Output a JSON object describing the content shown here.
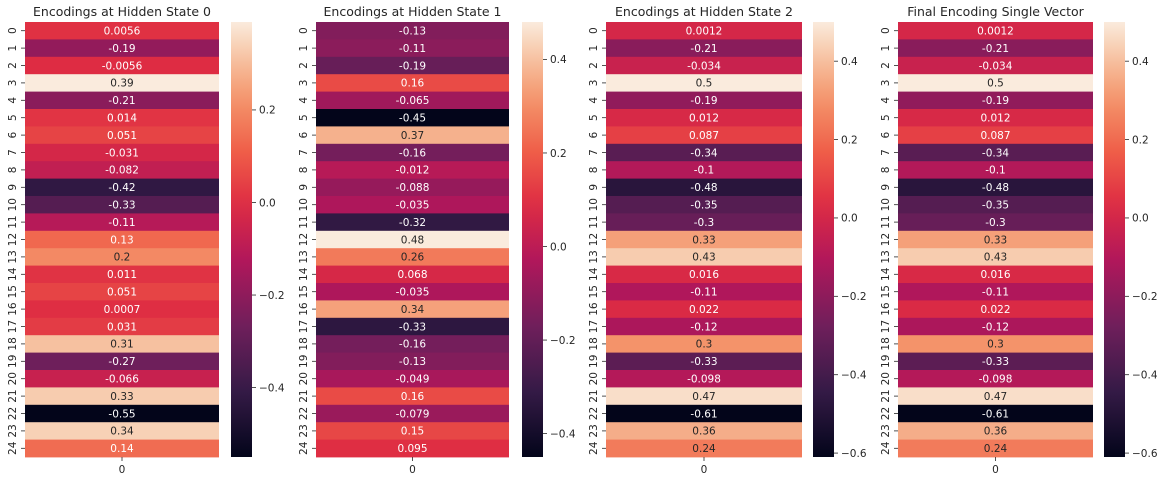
{
  "chart_data": [
    {
      "type": "heatmap",
      "title": "Encodings at Hidden State 0",
      "x_categories": [
        "0"
      ],
      "y_categories": [
        "0",
        "1",
        "2",
        "3",
        "4",
        "5",
        "6",
        "7",
        "8",
        "9",
        "10",
        "11",
        "12",
        "13",
        "14",
        "15",
        "16",
        "17",
        "18",
        "19",
        "20",
        "21",
        "22",
        "23",
        "24"
      ],
      "values": [
        0.0056,
        -0.19,
        -0.0056,
        0.39,
        -0.21,
        0.014,
        0.051,
        -0.031,
        -0.082,
        -0.42,
        -0.33,
        -0.11,
        0.13,
        0.2,
        0.011,
        0.051,
        0.0007,
        0.031,
        0.31,
        -0.27,
        -0.066,
        0.33,
        -0.55,
        0.34,
        0.14
      ],
      "labels": [
        "0.0056",
        "-0.19",
        "-0.0056",
        "0.39",
        "-0.21",
        "0.014",
        "0.051",
        "-0.031",
        "-0.082",
        "-0.42",
        "-0.33",
        "-0.11",
        "0.13",
        "0.2",
        "0.011",
        "0.051",
        "0.0007",
        "0.031",
        "0.31",
        "-0.27",
        "-0.066",
        "0.33",
        "-0.55",
        "0.34",
        "0.14"
      ],
      "colorbar": {
        "vmin": -0.55,
        "vmax": 0.39,
        "ticks": [
          0.2,
          0.0,
          -0.2,
          -0.4
        ],
        "tick_labels": [
          "0.2",
          "0.0",
          "−0.2",
          "−0.4"
        ]
      }
    },
    {
      "type": "heatmap",
      "title": "Encodings at Hidden State 1",
      "x_categories": [
        "0"
      ],
      "y_categories": [
        "0",
        "1",
        "2",
        "3",
        "4",
        "5",
        "6",
        "7",
        "8",
        "9",
        "10",
        "11",
        "12",
        "13",
        "14",
        "15",
        "16",
        "17",
        "18",
        "19",
        "20",
        "21",
        "22",
        "23",
        "24"
      ],
      "values": [
        -0.13,
        -0.11,
        -0.19,
        0.16,
        -0.065,
        -0.45,
        0.37,
        -0.16,
        -0.012,
        -0.088,
        -0.035,
        -0.32,
        0.48,
        0.26,
        0.068,
        -0.035,
        0.34,
        -0.33,
        -0.16,
        -0.13,
        -0.049,
        0.16,
        -0.079,
        0.15,
        0.095
      ],
      "labels": [
        "-0.13",
        "-0.11",
        "-0.19",
        "0.16",
        "-0.065",
        "-0.45",
        "0.37",
        "-0.16",
        "-0.012",
        "-0.088",
        "-0.035",
        "-0.32",
        "0.48",
        "0.26",
        "0.068",
        "-0.035",
        "0.34",
        "-0.33",
        "-0.16",
        "-0.13",
        "-0.049",
        "0.16",
        "-0.079",
        "0.15",
        "0.095"
      ],
      "colorbar": {
        "vmin": -0.45,
        "vmax": 0.48,
        "ticks": [
          0.4,
          0.2,
          0.0,
          -0.2,
          -0.4
        ],
        "tick_labels": [
          "0.4",
          "0.2",
          "0.0",
          "−0.2",
          "−0.4"
        ]
      }
    },
    {
      "type": "heatmap",
      "title": "Encodings at Hidden State 2",
      "x_categories": [
        "0"
      ],
      "y_categories": [
        "0",
        "1",
        "2",
        "3",
        "4",
        "5",
        "6",
        "7",
        "8",
        "9",
        "10",
        "11",
        "12",
        "13",
        "14",
        "15",
        "16",
        "17",
        "18",
        "19",
        "20",
        "21",
        "22",
        "23",
        "24"
      ],
      "values": [
        0.0012,
        -0.21,
        -0.034,
        0.5,
        -0.19,
        0.012,
        0.087,
        -0.34,
        -0.1,
        -0.48,
        -0.35,
        -0.3,
        0.33,
        0.43,
        0.016,
        -0.11,
        0.022,
        -0.12,
        0.3,
        -0.33,
        -0.098,
        0.47,
        -0.61,
        0.36,
        0.24
      ],
      "labels": [
        "0.0012",
        "-0.21",
        "-0.034",
        "0.5",
        "-0.19",
        "0.012",
        "0.087",
        "-0.34",
        "-0.1",
        "-0.48",
        "-0.35",
        "-0.3",
        "0.33",
        "0.43",
        "0.016",
        "-0.11",
        "0.022",
        "-0.12",
        "0.3",
        "-0.33",
        "-0.098",
        "0.47",
        "-0.61",
        "0.36",
        "0.24"
      ],
      "colorbar": {
        "vmin": -0.61,
        "vmax": 0.5,
        "ticks": [
          0.4,
          0.2,
          0.0,
          -0.2,
          -0.4,
          -0.6
        ],
        "tick_labels": [
          "0.4",
          "0.2",
          "0.0",
          "−0.2",
          "−0.4",
          "−0.6"
        ]
      }
    },
    {
      "type": "heatmap",
      "title": "Final Encoding Single Vector",
      "x_categories": [
        "0"
      ],
      "y_categories": [
        "0",
        "1",
        "2",
        "3",
        "4",
        "5",
        "6",
        "7",
        "8",
        "9",
        "10",
        "11",
        "12",
        "13",
        "14",
        "15",
        "16",
        "17",
        "18",
        "19",
        "20",
        "21",
        "22",
        "23",
        "24"
      ],
      "values": [
        0.0012,
        -0.21,
        -0.034,
        0.5,
        -0.19,
        0.012,
        0.087,
        -0.34,
        -0.1,
        -0.48,
        -0.35,
        -0.3,
        0.33,
        0.43,
        0.016,
        -0.11,
        0.022,
        -0.12,
        0.3,
        -0.33,
        -0.098,
        0.47,
        -0.61,
        0.36,
        0.24
      ],
      "labels": [
        "0.0012",
        "-0.21",
        "-0.034",
        "0.5",
        "-0.19",
        "0.012",
        "0.087",
        "-0.34",
        "-0.1",
        "-0.48",
        "-0.35",
        "-0.3",
        "0.33",
        "0.43",
        "0.016",
        "-0.11",
        "0.022",
        "-0.12",
        "0.3",
        "-0.33",
        "-0.098",
        "0.47",
        "-0.61",
        "0.36",
        "0.24"
      ],
      "colorbar": {
        "vmin": -0.61,
        "vmax": 0.5,
        "ticks": [
          0.4,
          0.2,
          0.0,
          -0.2,
          -0.4,
          -0.6
        ],
        "tick_labels": [
          "0.4",
          "0.2",
          "0.0",
          "−0.2",
          "−0.4",
          "−0.6"
        ]
      }
    }
  ],
  "colormap": "rocket"
}
